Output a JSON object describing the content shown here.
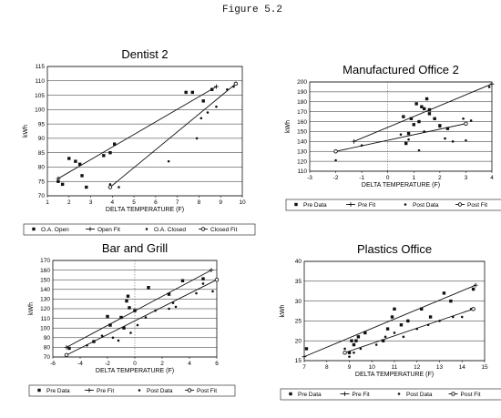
{
  "figure_label": "Figure 5.2",
  "chart_data": [
    {
      "type": "scatter",
      "title": "Dentist 2",
      "xlabel": "DELTA TEMPERATURE (F)",
      "ylabel": "kWh",
      "xlim": [
        1,
        10
      ],
      "ylim": [
        70,
        115
      ],
      "xticks": [
        1,
        2,
        3,
        4,
        5,
        6,
        7,
        8,
        9,
        10
      ],
      "yticks": [
        70,
        75,
        80,
        85,
        90,
        95,
        100,
        105,
        110,
        115
      ],
      "grid": "horizontal",
      "legend_position": "bottom",
      "legend": [
        "O.A. Open",
        "Open Fit",
        "O.A. Closed",
        "Closed Fit"
      ],
      "series": [
        {
          "name": "O.A. Open",
          "marker": "square",
          "points": [
            [
              1.5,
              75
            ],
            [
              1.7,
              74
            ],
            [
              2.0,
              83
            ],
            [
              2.3,
              82
            ],
            [
              2.5,
              81
            ],
            [
              2.6,
              77
            ],
            [
              2.8,
              73
            ],
            [
              3.6,
              84
            ],
            [
              3.9,
              85
            ],
            [
              4.1,
              88
            ],
            [
              7.4,
              106
            ],
            [
              7.7,
              106
            ],
            [
              8.2,
              103
            ],
            [
              8.6,
              107
            ]
          ]
        },
        {
          "name": "Open Fit",
          "style": "line",
          "points": [
            [
              1.5,
              76
            ],
            [
              8.8,
              108
            ]
          ]
        },
        {
          "name": "O.A. Closed",
          "marker": "dot",
          "points": [
            [
              3.9,
              74
            ],
            [
              4.3,
              73
            ],
            [
              6.6,
              82
            ],
            [
              7.9,
              90
            ],
            [
              8.1,
              97
            ],
            [
              8.4,
              99
            ],
            [
              8.8,
              101
            ],
            [
              9.3,
              107
            ],
            [
              9.6,
              108
            ]
          ]
        },
        {
          "name": "Closed Fit",
          "style": "line",
          "points": [
            [
              3.9,
              73
            ],
            [
              9.7,
              109
            ]
          ]
        }
      ]
    },
    {
      "type": "scatter",
      "title": "Manufactured Office 2",
      "xlabel": "DELTA TEMPERATURE (F)",
      "ylabel": "kWh",
      "xlim": [
        -3,
        4
      ],
      "ylim": [
        110,
        200
      ],
      "xticks": [
        -3,
        -2,
        -1,
        0,
        1,
        2,
        3,
        4
      ],
      "yticks": [
        110,
        120,
        130,
        140,
        150,
        160,
        170,
        180,
        190,
        200
      ],
      "grid": "horizontal",
      "legend_position": "bottom",
      "legend": [
        "Pre Data",
        "Pre Fit",
        "Post Data",
        "Post Fit"
      ],
      "series": [
        {
          "name": "Pre Data",
          "marker": "square",
          "points": [
            [
              0.6,
              165
            ],
            [
              0.9,
              163
            ],
            [
              1.1,
              178
            ],
            [
              1.3,
              175
            ],
            [
              1.4,
              173
            ],
            [
              1.5,
              183
            ],
            [
              1.6,
              172
            ],
            [
              1.6,
              168
            ],
            [
              1.8,
              163
            ],
            [
              2.0,
              156
            ],
            [
              2.3,
              153
            ],
            [
              0.7,
              138
            ],
            [
              1.2,
              160
            ],
            [
              1.0,
              157
            ],
            [
              0.8,
              148
            ]
          ]
        },
        {
          "name": "Pre Fit",
          "style": "line",
          "points": [
            [
              -1.3,
              140
            ],
            [
              4.0,
              198
            ]
          ]
        },
        {
          "name": "Post Data",
          "marker": "dot",
          "points": [
            [
              -2.0,
              121
            ],
            [
              -1.0,
              136
            ],
            [
              0.5,
              147
            ],
            [
              0.8,
              142
            ],
            [
              1.2,
              131
            ],
            [
              1.4,
              150
            ],
            [
              2.0,
              155
            ],
            [
              2.2,
              143
            ],
            [
              2.5,
              140
            ],
            [
              2.9,
              163
            ],
            [
              3.0,
              141
            ],
            [
              3.2,
              161
            ],
            [
              3.9,
              195
            ]
          ]
        },
        {
          "name": "Post Fit",
          "style": "line",
          "points": [
            [
              -2.0,
              130
            ],
            [
              3.0,
              158
            ]
          ]
        }
      ]
    },
    {
      "type": "scatter",
      "title": "Bar and Grill",
      "xlabel": "DELTA TEMPERATURE (F)",
      "ylabel": "kWh",
      "xlim": [
        -6,
        6
      ],
      "ylim": [
        70,
        170
      ],
      "xticks": [
        -6,
        -4,
        -2,
        0,
        2,
        4,
        6
      ],
      "yticks": [
        70,
        80,
        90,
        100,
        110,
        120,
        130,
        140,
        150,
        160,
        170
      ],
      "grid": "horizontal",
      "legend_position": "bottom",
      "legend": [
        "Pre Data",
        "Pre Fit",
        "Post Data",
        "Post Fit"
      ],
      "series": [
        {
          "name": "Pre Data",
          "marker": "square",
          "points": [
            [
              -4.8,
              79
            ],
            [
              -3.0,
              86
            ],
            [
              -2.0,
              112
            ],
            [
              -1.8,
              103
            ],
            [
              -1.0,
              111
            ],
            [
              -0.8,
              100
            ],
            [
              -0.6,
              128
            ],
            [
              -0.5,
              133
            ],
            [
              -0.4,
              121
            ],
            [
              0.0,
              118
            ],
            [
              1.0,
              142
            ],
            [
              2.5,
              135
            ],
            [
              3.5,
              149
            ],
            [
              5.0,
              151
            ]
          ]
        },
        {
          "name": "Pre Fit",
          "style": "line",
          "points": [
            [
              -5.0,
              80
            ],
            [
              5.6,
              160
            ]
          ]
        },
        {
          "name": "Post Data",
          "marker": "dot",
          "points": [
            [
              -3.5,
              82
            ],
            [
              -2.4,
              92
            ],
            [
              -1.6,
              90
            ],
            [
              -1.2,
              87
            ],
            [
              -0.3,
              95
            ],
            [
              0.2,
              103
            ],
            [
              0.8,
              111
            ],
            [
              1.5,
              118
            ],
            [
              2.5,
              120
            ],
            [
              2.8,
              126
            ],
            [
              3.0,
              122
            ],
            [
              4.5,
              136
            ],
            [
              5.0,
              146
            ],
            [
              5.7,
              138
            ]
          ]
        },
        {
          "name": "Post Fit",
          "style": "line",
          "points": [
            [
              -5.0,
              72
            ],
            [
              6.0,
              150
            ]
          ]
        }
      ]
    },
    {
      "type": "scatter",
      "title": "Plastics Office",
      "xlabel": "DELTA TEMPERATURE (F)",
      "ylabel": "kWh",
      "xlim": [
        7,
        15
      ],
      "ylim": [
        15,
        40
      ],
      "xticks": [
        7,
        8,
        9,
        10,
        11,
        12,
        13,
        14,
        15
      ],
      "yticks": [
        15,
        20,
        25,
        30,
        35,
        40
      ],
      "grid": "horizontal",
      "legend_position": "bottom",
      "legend": [
        "Pre Data",
        "Pre Fit",
        "Post Data",
        "Post Fit"
      ],
      "series": [
        {
          "name": "Pre Data",
          "marker": "square",
          "points": [
            [
              7.1,
              18
            ],
            [
              9.0,
              17
            ],
            [
              9.1,
              20
            ],
            [
              9.2,
              19
            ],
            [
              9.3,
              20
            ],
            [
              9.4,
              21
            ],
            [
              9.7,
              22
            ],
            [
              10.5,
              20
            ],
            [
              10.7,
              23
            ],
            [
              10.9,
              26
            ],
            [
              11.0,
              28
            ],
            [
              11.3,
              24
            ],
            [
              11.6,
              25
            ],
            [
              12.2,
              28
            ],
            [
              12.6,
              26
            ],
            [
              13.2,
              32
            ],
            [
              13.5,
              30
            ],
            [
              14.5,
              33
            ]
          ]
        },
        {
          "name": "Pre Fit",
          "style": "line",
          "points": [
            [
              7.0,
              16
            ],
            [
              14.6,
              34
            ]
          ]
        },
        {
          "name": "Post Data",
          "marker": "dot",
          "points": [
            [
              8.8,
              18
            ],
            [
              9.0,
              16
            ],
            [
              9.2,
              17
            ],
            [
              9.5,
              18
            ],
            [
              10.2,
              19
            ],
            [
              10.6,
              21
            ],
            [
              11.0,
              22
            ],
            [
              11.4,
              21
            ],
            [
              12.0,
              23
            ],
            [
              12.5,
              24
            ],
            [
              13.0,
              25
            ],
            [
              13.6,
              26
            ],
            [
              14.0,
              26
            ],
            [
              14.4,
              28
            ]
          ]
        },
        {
          "name": "Post Fit",
          "style": "line",
          "points": [
            [
              8.8,
              17
            ],
            [
              14.5,
              28
            ]
          ]
        }
      ]
    }
  ]
}
